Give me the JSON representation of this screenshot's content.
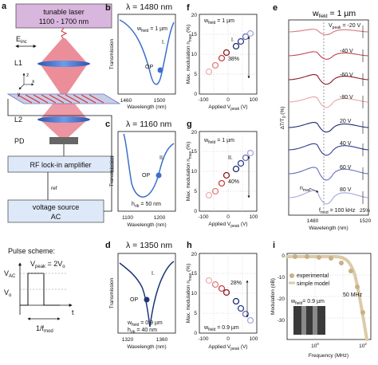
{
  "panel_a": {
    "label": "a",
    "laser_line1": "tunable laser",
    "laser_line2": "1100 - 1700 nm",
    "e_inc": "E",
    "e_inc_sub": "inc",
    "l1": "L1",
    "l2": "L2",
    "pd": "PD",
    "axis_x": "x",
    "axis_y": "y",
    "axis_z": "z",
    "amp": "RF lock-in amplifier",
    "ref": "ref",
    "vs_line1": "voltage source",
    "vs_line2": "AC",
    "pulse_title": "Pulse scheme:",
    "vac": "V",
    "vac_sub": "AC",
    "vpeak": "V",
    "vpeak_sub": "peak",
    "vpeak_eq": " = 2V",
    "vpeak_eq_sub": "o",
    "vo": "V",
    "vo_sub": "o",
    "t": "t",
    "period": "1/f",
    "period_sub": "mod",
    "colors": {
      "laser": "#d8b4dc",
      "beam": "#e8707e",
      "lens": "#3a6fcc",
      "amp": "#dbe7f7",
      "vs": "#dbe7f7"
    }
  },
  "panel_b": {
    "label": "b",
    "title": "λ = 1480 nm",
    "w_field": "w",
    "w_field_sub": "field",
    "w_field_val": " = 1 µm",
    "mode": "I.",
    "op": "OP",
    "ylabel": "Transmission",
    "xlabel": "Wavelength (nm)",
    "xticks": [
      "1460",
      "1500"
    ]
  },
  "panel_c": {
    "label": "c",
    "title": "λ = 1160 nm",
    "mode": "II.",
    "op": "OP",
    "h": "h",
    "h_sub": "rib",
    "h_val": " = 50 nm",
    "ylabel": "Transmission",
    "xlabel": "Wavelength (nm)",
    "xticks": [
      "1100",
      "1200"
    ]
  },
  "panel_d": {
    "label": "d",
    "title": "λ = 1350 nm",
    "mode": "I.",
    "op": "OP",
    "w_field": "w",
    "w_field_sub": "field",
    "w_field_val": " = 0.9 µm",
    "h": "h",
    "h_sub": "rib",
    "h_val": " = 40 nm",
    "ylabel": "Transmission",
    "xlabel": "Wavelength (nm)",
    "xticks": [
      "1320",
      "1360"
    ]
  },
  "panel_f": {
    "label": "f",
    "w_field": "w",
    "w_field_sub": "field",
    "w_field_val": " = 1 µm",
    "mode": "I.",
    "pct": "38%",
    "ylabel": "Max. modulation n",
    "ylabel_sub": "max",
    "ylabel_unit": " (%)",
    "xlabel": "Applied V",
    "xlabel_sub": "peak",
    "xlabel_unit": " (V)",
    "yticks": [
      "0",
      "5",
      "10",
      "15",
      "20"
    ],
    "xticks": [
      "-100",
      "0",
      "100"
    ]
  },
  "panel_g": {
    "label": "g",
    "w_field": "w",
    "w_field_sub": "field",
    "w_field_val": " = 1 µm",
    "mode": "II.",
    "pct": "40%",
    "ylabel": "Max. modulation n",
    "ylabel_sub": "max",
    "ylabel_unit": " (%)",
    "xlabel": "Applied V",
    "xlabel_sub": "peak",
    "xlabel_unit": " (V)",
    "yticks": [
      "0",
      "5",
      "10",
      "15",
      "20"
    ],
    "xticks": [
      "-100",
      "0",
      "100"
    ]
  },
  "panel_h": {
    "label": "h",
    "w_field": "w",
    "w_field_sub": "field",
    "w_field_val": " = 0.9 µm",
    "pct": "28%",
    "ylabel": "Max. modulation n",
    "ylabel_sub": "max",
    "ylabel_unit": " (%)",
    "xlabel": "Applied V",
    "xlabel_sub": "peak",
    "xlabel_unit": " (V)",
    "yticks": [
      "0",
      "5",
      "10",
      "15",
      "20"
    ],
    "xticks": [
      "-100",
      "0",
      "100"
    ]
  },
  "panel_e": {
    "label": "e",
    "title": "w",
    "title_sub": "field",
    "title_val": " = 1 µm",
    "vpeak": "V",
    "vpeak_sub": "peak",
    "voltages": [
      "= -20 V",
      "-40 V",
      "-60 V",
      "-80 V",
      "20 V",
      "40 V",
      "60 V",
      "80 V"
    ],
    "nmax": "n",
    "nmax_sub": "max",
    "fmod": "f",
    "fmod_sub": "mod",
    "fmod_val": " = 100 kHz",
    "pct": "25%",
    "ylabel": "ΔT/T",
    "ylabel_sub": "0",
    "ylabel_unit": " (%)",
    "xlabel": "Wavelength (nm)",
    "xticks": [
      "1480",
      "1520"
    ]
  },
  "panel_i": {
    "label": "i",
    "legend1": "experimental",
    "legend2": "simple model",
    "freq": "50 MHz",
    "w_field": "w",
    "w_field_sub": "field",
    "w_field_val": "= 0.9 µm",
    "ylabel": "Modulation (dB)",
    "xlabel": "Frequency (MHz)",
    "yticks": [
      "0",
      "-10",
      "-20",
      "-30"
    ],
    "xticks": [
      "10",
      "10"
    ],
    "xtick_exp": [
      "0",
      "2"
    ]
  },
  "chart_data": [
    {
      "type": "line",
      "title": "λ = 1480 nm",
      "xlabel": "Wavelength (nm)",
      "ylabel": "Transmission",
      "x": [
        1450,
        1460,
        1470,
        1480,
        1490,
        1495,
        1500,
        1505,
        1510,
        1520
      ],
      "values": [
        0.9,
        0.85,
        0.72,
        0.52,
        0.25,
        0.12,
        0.05,
        0.14,
        0.45,
        0.85
      ]
    },
    {
      "type": "line",
      "title": "λ = 1160 nm",
      "xlabel": "Wavelength (nm)",
      "ylabel": "Transmission",
      "x": [
        1080,
        1100,
        1120,
        1140,
        1160,
        1180,
        1200,
        1220
      ],
      "values": [
        0.95,
        0.9,
        0.7,
        0.35,
        0.15,
        0.12,
        0.3,
        0.8
      ]
    },
    {
      "type": "line",
      "title": "λ = 1350 nm",
      "xlabel": "Wavelength (nm)",
      "ylabel": "Transmission",
      "x": [
        1315,
        1325,
        1335,
        1345,
        1350,
        1352,
        1355,
        1360,
        1370
      ],
      "values": [
        0.95,
        0.85,
        0.7,
        0.45,
        0.1,
        0.02,
        0.3,
        0.75,
        0.95
      ]
    },
    {
      "type": "scatter",
      "xlabel": "Applied Vpeak (V)",
      "ylabel": "Max. modulation nmax (%)",
      "x": [
        -80,
        -60,
        -40,
        -20,
        20,
        40,
        60,
        80
      ],
      "values": [
        6,
        8,
        11,
        13,
        15,
        16,
        17,
        18
      ]
    },
    {
      "type": "scatter",
      "xlabel": "Applied Vpeak (V)",
      "ylabel": "Max. modulation nmax (%)",
      "x": [
        -80,
        -60,
        -40,
        -20,
        20,
        40,
        60,
        80
      ],
      "values": [
        4,
        5,
        7,
        10,
        12,
        14,
        15,
        17
      ]
    },
    {
      "type": "scatter",
      "xlabel": "Applied Vpeak (V)",
      "ylabel": "Max. modulation nmax (%)",
      "x": [
        -80,
        -60,
        -40,
        -20,
        20,
        40,
        60,
        80
      ],
      "values": [
        13,
        12,
        11,
        10,
        8,
        6,
        5,
        3
      ]
    },
    {
      "type": "scatter",
      "xlabel": "Frequency (MHz)",
      "ylabel": "Modulation (dB)",
      "x": [
        0.3,
        1,
        3,
        10,
        30,
        50,
        70,
        100
      ],
      "values": [
        0,
        0,
        -1,
        -2,
        -5,
        -10,
        -18,
        -30
      ]
    }
  ]
}
